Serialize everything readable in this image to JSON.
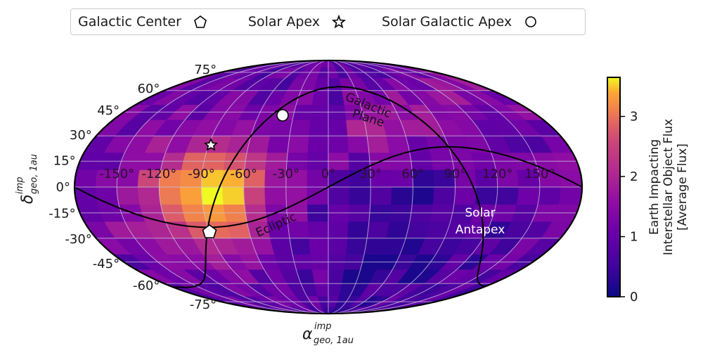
{
  "legend": {
    "items": [
      {
        "label": "Galactic Center",
        "marker": "pentagon-icon"
      },
      {
        "label": "Solar Apex",
        "marker": "star-icon"
      },
      {
        "label": "Solar Galactic Apex",
        "marker": "circle-icon"
      }
    ]
  },
  "axes": {
    "projection": "mollweide",
    "xlabel": "α",
    "xlabel_sup": "imp",
    "xlabel_sub": "geo, 1au",
    "ylabel": "δ",
    "ylabel_sup": "imp",
    "ylabel_sub": "geo, 1au",
    "lon_ticks": [
      "-150°",
      "-120°",
      "-90°",
      "-60°",
      "-30°",
      "0°",
      "30°",
      "60°",
      "90°",
      "120°",
      "150°"
    ],
    "lat_ticks": [
      "75°",
      "60°",
      "45°",
      "30°",
      "15°",
      "0°",
      "-15°",
      "-30°",
      "-45°",
      "-60°",
      "-75°"
    ]
  },
  "annotations": {
    "galactic_plane": [
      "Galactic",
      "Plane"
    ],
    "ecliptic": "Ecliptic",
    "solar_antapex": [
      "Solar",
      "Antapex"
    ]
  },
  "colorbar": {
    "label_lines": [
      "Earth Impacting",
      "Interstellar Object Flux",
      "[Average Flux]"
    ],
    "ticks": [
      "0",
      "1",
      "2",
      "3"
    ],
    "vmin": 0,
    "vmax": 3.65,
    "cmap": "plasma"
  },
  "chart_data": {
    "type": "heatmap",
    "title": "",
    "projection": "mollweide",
    "xlabel": "α_geo,1au^imp (deg)",
    "ylabel": "δ_geo,1au^imp (deg)",
    "colorbar_label": "Earth Impacting Interstellar Object Flux [Average Flux]",
    "xlim": [
      -180,
      180
    ],
    "ylim": [
      -90,
      90
    ],
    "lon_step_deg": 15,
    "lat_step_deg": 10,
    "grid": true,
    "hotspot": {
      "lon": -85,
      "lat": -5,
      "peak_value": 3.6,
      "description": "Maximum flux near α≈-90°, δ≈-5° (near Solar Apex / Galactic Center)"
    },
    "coldspot": {
      "lon": 60,
      "lat": -30,
      "min_value": 0.2,
      "description": "Minimum flux around Solar Antapex region"
    },
    "markers": [
      {
        "name": "Galactic Center",
        "lon": -94,
        "lat": -29,
        "symbol": "pentagon"
      },
      {
        "name": "Solar Apex",
        "lon": -89,
        "lat": 19,
        "symbol": "star"
      },
      {
        "name": "Solar Galactic Apex",
        "lon": -42,
        "lat": 48,
        "symbol": "circle"
      }
    ],
    "curves": [
      "Galactic Plane",
      "Ecliptic"
    ],
    "text_labels": [
      "Solar Antapex"
    ]
  }
}
